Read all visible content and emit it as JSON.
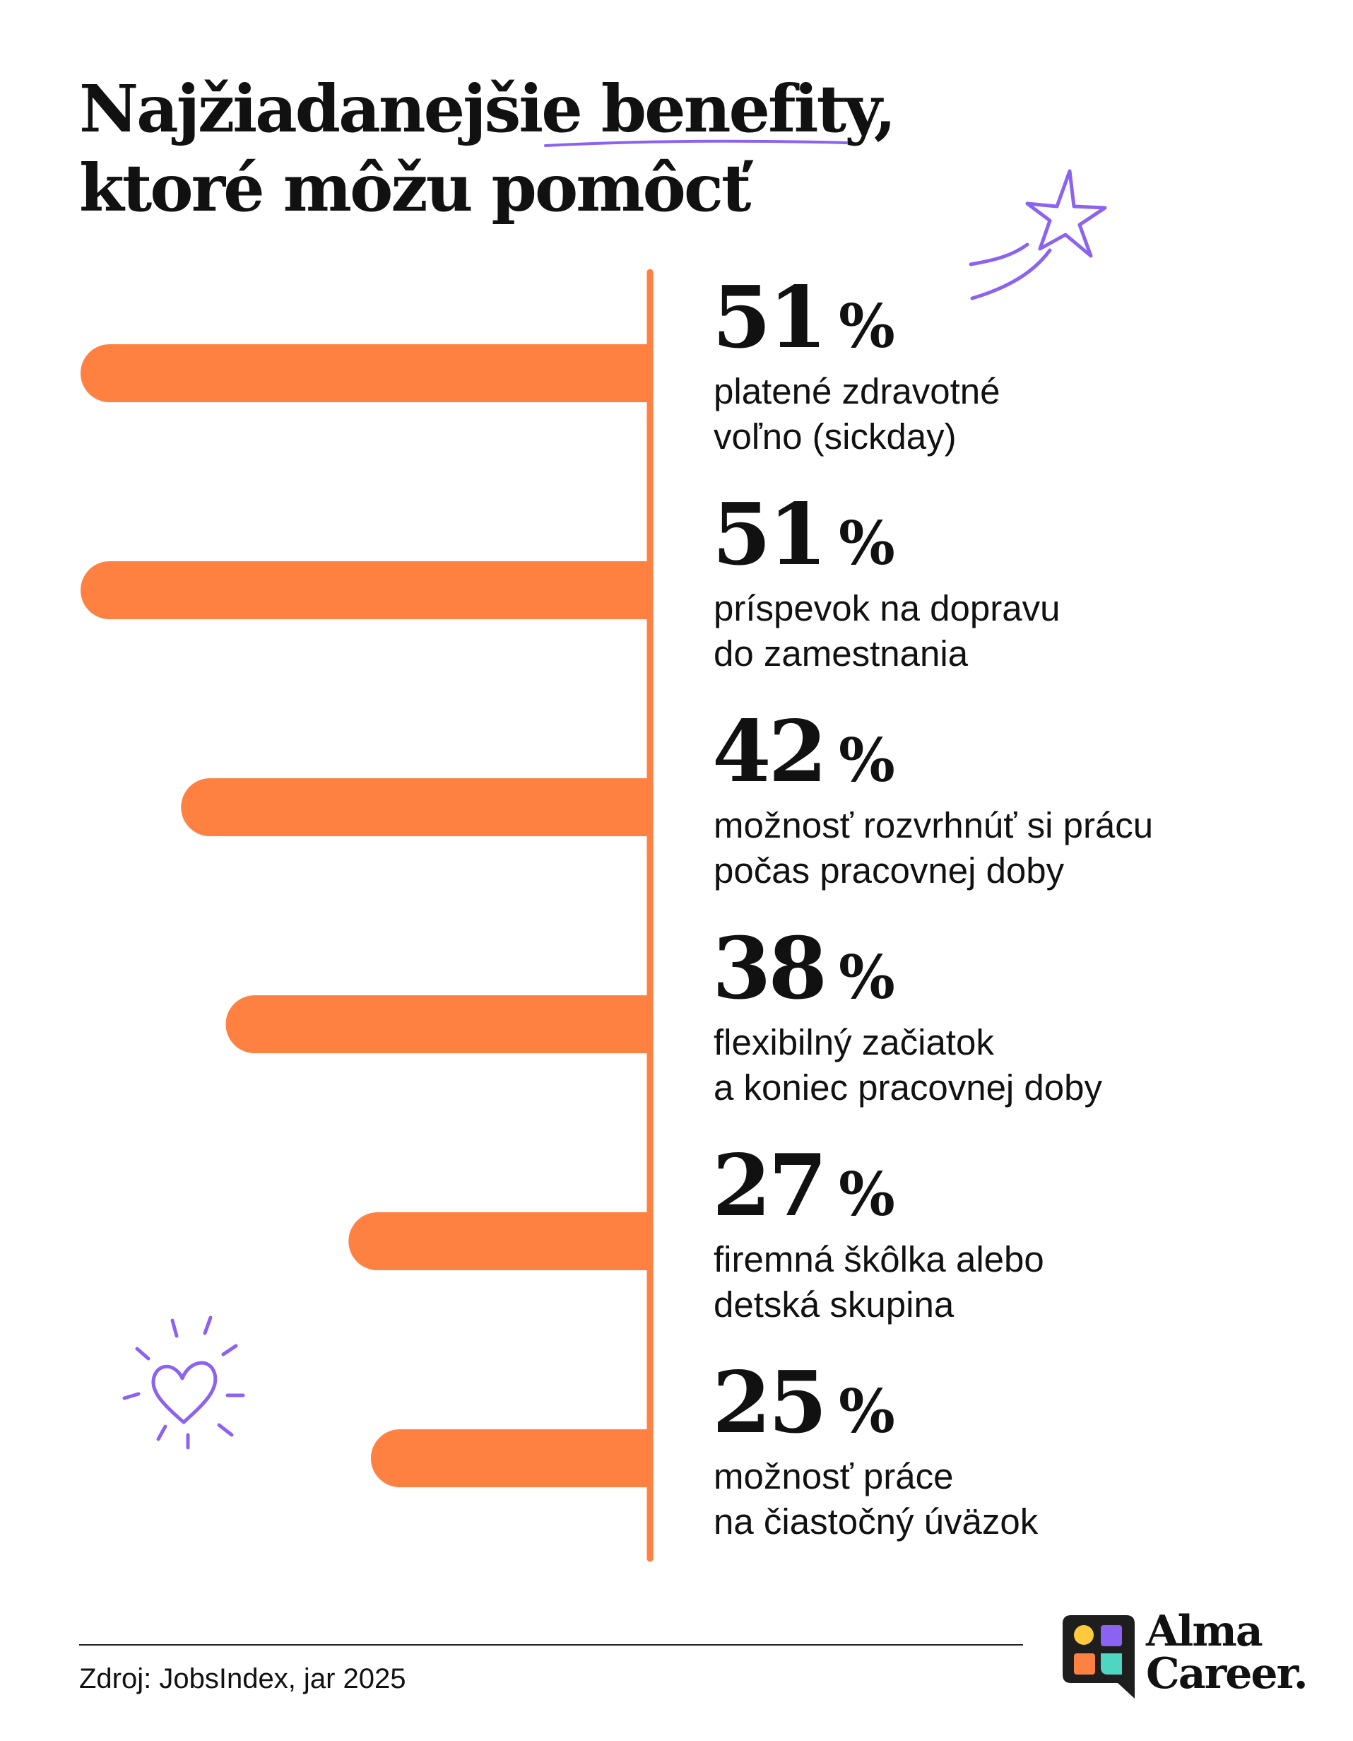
{
  "header": {
    "title_line1_prefix": "Najžiadanejšie ",
    "title_line1_highlight": "benefity,",
    "title_line2": "ktoré môžu pomôcť"
  },
  "chart_data": {
    "type": "bar",
    "orientation": "horizontal",
    "unit": "%",
    "categories": [
      "platené zdravotné\nvoľno (sickday)",
      "príspevok na dopravu\ndo zamestnania",
      "možnosť rozvrhnúť si prácu\npočas pracovnej doby",
      "flexibilný začiatok\na koniec pracovnej doby",
      "firemná škôlka alebo\ndetská skupina",
      "možnosť práce\nna čiastočný úväzok"
    ],
    "values": [
      51,
      51,
      42,
      38,
      27,
      25
    ],
    "value_labels": [
      "51",
      "51",
      "42",
      "38",
      "27",
      "25"
    ],
    "xlim": [
      0,
      51
    ],
    "bar_color": "#FF8142",
    "accent_color": "#8B63F0",
    "grid": false,
    "legend": "none"
  },
  "footer": {
    "source": "Zdroj: JobsIndex, jar 2025",
    "brand_line1": "Alma",
    "brand_line2": "Career."
  },
  "colors": {
    "text": "#111111",
    "logo_bg": "#1E1E1E",
    "logo_yellow": "#FFC93C",
    "logo_purple": "#8B63F0",
    "logo_orange": "#FF8142",
    "logo_teal": "#4FD6C2"
  },
  "icons": [
    "star-icon",
    "heart-icon",
    "alma-career-logo-icon"
  ]
}
